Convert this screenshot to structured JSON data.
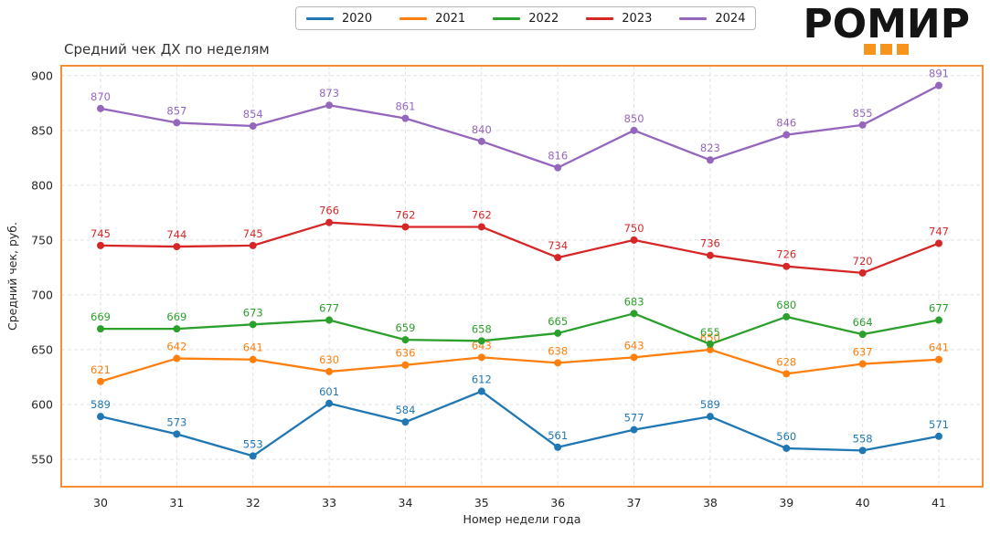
{
  "header": {
    "logo_text": "РОМИР",
    "logo_squares_color": "#f7941e",
    "logo_squares_count": 3
  },
  "chart_data": {
    "type": "line",
    "title": "Средний чек ДХ по неделям",
    "xlabel": "Номер недели года",
    "ylabel": "Средний чек, руб.",
    "categories": [
      "30",
      "31",
      "32",
      "33",
      "34",
      "35",
      "36",
      "37",
      "38",
      "39",
      "40",
      "41"
    ],
    "yticks": [
      550,
      600,
      650,
      700,
      750,
      800,
      850,
      900
    ],
    "ylim": [
      525,
      909
    ],
    "grid": true,
    "grid_style": "dashed",
    "legend_position": "top-center",
    "border_color": "#f58220",
    "grid_color": "#e2e2e2",
    "tick_label_color": "#262626",
    "series": [
      {
        "name": "2020",
        "color": "#1f77b4",
        "values": [
          589,
          573,
          553,
          601,
          584,
          612,
          561,
          577,
          589,
          560,
          558,
          571
        ]
      },
      {
        "name": "2021",
        "color": "#ff7f0e",
        "values": [
          621,
          642,
          641,
          630,
          636,
          643,
          638,
          643,
          650,
          628,
          637,
          641
        ]
      },
      {
        "name": "2022",
        "color": "#2ca02c",
        "values": [
          669,
          669,
          673,
          677,
          659,
          658,
          665,
          683,
          655,
          680,
          664,
          677
        ]
      },
      {
        "name": "2023",
        "color": "#d62728",
        "values": [
          745,
          744,
          745,
          766,
          762,
          762,
          734,
          750,
          736,
          726,
          720,
          747
        ]
      },
      {
        "name": "2024",
        "color": "#9467bd",
        "values": [
          870,
          857,
          854,
          873,
          861,
          840,
          816,
          850,
          823,
          846,
          855,
          891
        ]
      }
    ]
  }
}
